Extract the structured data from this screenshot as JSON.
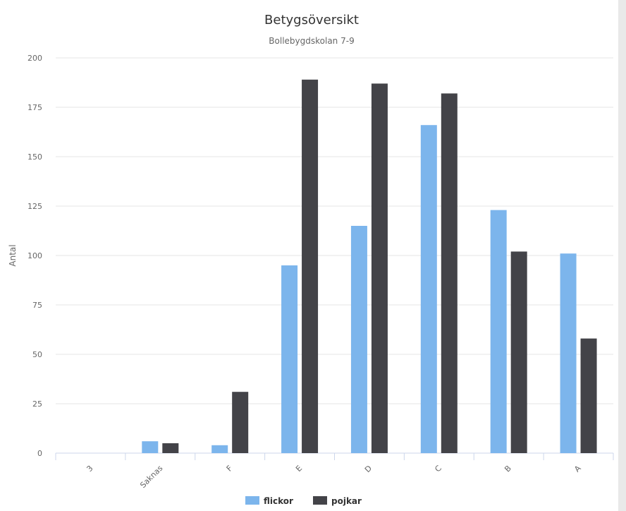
{
  "chart_data": {
    "type": "bar",
    "title": "Betygsöversikt",
    "subtitle": "Bollebygdskolan 7-9",
    "xlabel": "",
    "ylabel": "Antal",
    "ylim": [
      0,
      200
    ],
    "yticks": [
      "0",
      "25",
      "50",
      "75",
      "100",
      "125",
      "150",
      "175",
      "200"
    ],
    "categories": [
      "3",
      "Saknas",
      "F",
      "E",
      "D",
      "C",
      "B",
      "A"
    ],
    "series": [
      {
        "name": "flickor",
        "color": "#7cb5ec",
        "values": [
          0,
          6,
          4,
          95,
          115,
          166,
          123,
          101
        ]
      },
      {
        "name": "pojkar",
        "color": "#434348",
        "values": [
          0,
          5,
          31,
          189,
          187,
          182,
          102,
          58
        ]
      }
    ],
    "grid": true,
    "legend_position": "bottom-center"
  }
}
